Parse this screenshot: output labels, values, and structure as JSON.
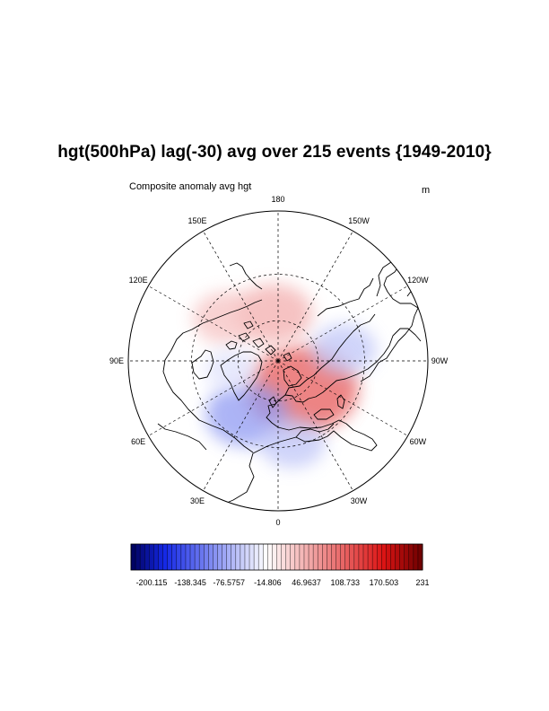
{
  "figure": {
    "title": "hgt(500hPa) lag(-30) avg over 215 events {1949-2010}",
    "left_string": "Composite anomaly avg hgt",
    "right_string": "m",
    "projection": "north polar stereographic"
  },
  "map": {
    "longitude_labels": [
      {
        "lon": 180,
        "text": "180"
      },
      {
        "lon": 150,
        "text": "150E"
      },
      {
        "lon": 120,
        "text": "120E"
      },
      {
        "lon": 90,
        "text": "90E"
      },
      {
        "lon": 60,
        "text": "60E"
      },
      {
        "lon": 30,
        "text": "30E"
      },
      {
        "lon": 0,
        "text": "0"
      },
      {
        "lon": -30,
        "text": "30W"
      },
      {
        "lon": -60,
        "text": "60W"
      },
      {
        "lon": -90,
        "text": "90W"
      },
      {
        "lon": -120,
        "text": "120W"
      },
      {
        "lon": -150,
        "text": "150W"
      }
    ],
    "gridline_latitudes": [
      30,
      60
    ],
    "anomaly_blobs": [
      {
        "name": "positive-anomaly-greenland",
        "lat": 62,
        "lon": -40,
        "value": 120
      },
      {
        "name": "positive-anomaly-north-pacific",
        "lat": 55,
        "lon": 175,
        "value": 60
      },
      {
        "name": "positive-anomaly-east-asia",
        "lat": 42,
        "lon": 130,
        "value": 45
      },
      {
        "name": "negative-anomaly-europe",
        "lat": 45,
        "lon": 30,
        "value": -70
      },
      {
        "name": "negative-anomaly-north-america",
        "lat": 42,
        "lon": -100,
        "value": -40
      },
      {
        "name": "negative-anomaly-atlantic",
        "lat": 32,
        "lon": -10,
        "value": -40
      },
      {
        "name": "negative-anomaly-siberia",
        "lat": 55,
        "lon": 80,
        "value": -20
      }
    ]
  },
  "colorbar": {
    "min": -200.115,
    "max": 231,
    "tick_labels": [
      "-200.115",
      "-138.345",
      "-76.5757",
      "-14.806",
      "46.9637",
      "108.733",
      "170.503",
      "231"
    ],
    "colors": {
      "low": "#00005a",
      "mid": "#ffffff",
      "high": "#6a0000"
    }
  }
}
